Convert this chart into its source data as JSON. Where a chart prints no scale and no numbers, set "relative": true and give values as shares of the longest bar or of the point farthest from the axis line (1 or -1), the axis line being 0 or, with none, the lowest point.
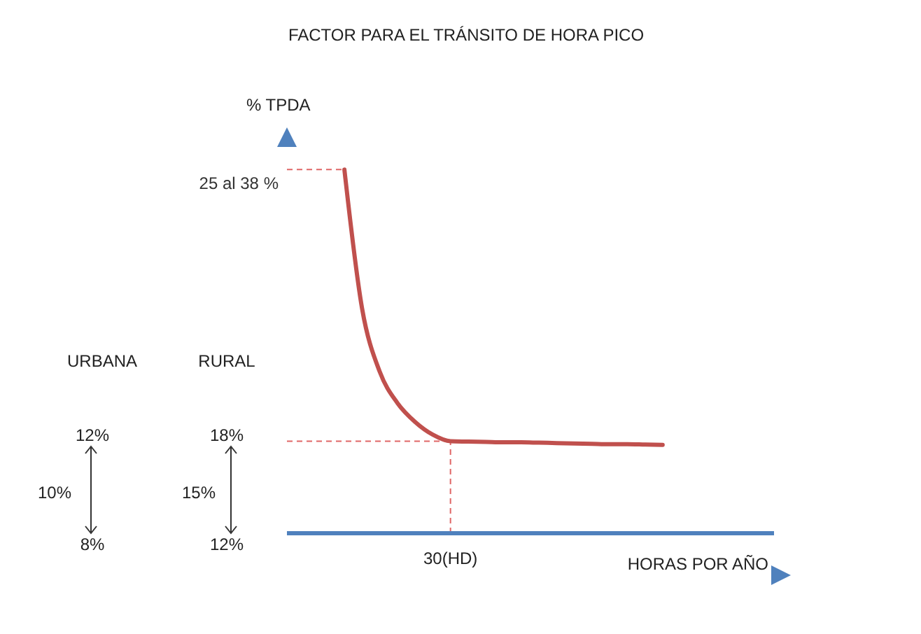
{
  "chart_data": {
    "type": "line",
    "title": "FACTOR PARA EL TRÁNSITO DE HORA PICO",
    "xlabel": "HORAS POR AÑO",
    "ylabel": "% TPDA",
    "relative": true,
    "categories": [
      null,
      null,
      null,
      null,
      null,
      null,
      null,
      null,
      null,
      null,
      null,
      null,
      null,
      null,
      null,
      null,
      null,
      null,
      null
    ],
    "series": [
      {
        "color": "#c0504d",
        "values": [
          1,
          0.618,
          0.444,
          0.358,
          0.306,
          0.271,
          0.253,
          0.252,
          0.251,
          0.25,
          0.25,
          0.249,
          0.248,
          0.247,
          0.246,
          0.245,
          0.245,
          0.244,
          0.243
        ]
      }
    ],
    "ref_lines": [
      {
        "axis": "y",
        "value": 1,
        "label": "25 al 38 %",
        "line_style": "dashed",
        "color": "#e06666"
      },
      {
        "axis": "y",
        "value": 0.253,
        "label": null,
        "line_style": "dashed",
        "color": "#e06666"
      },
      {
        "axis": "x",
        "value": "30(HD)",
        "label": null,
        "line_style": "dashed",
        "color": "#e06666"
      }
    ],
    "annotations": [
      "URBANA",
      "RURAL",
      "12%",
      "10%",
      "8%",
      "18%",
      "15%",
      "12%"
    ],
    "marker": "none",
    "line_style": "solid",
    "grid": false,
    "legend": false
  }
}
